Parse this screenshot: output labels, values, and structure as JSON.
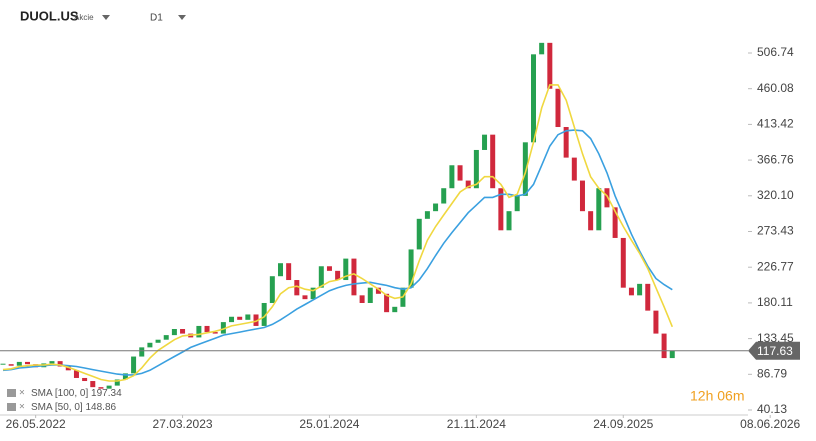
{
  "chart_data": {
    "type": "candle",
    "symbol": "DUOL.US",
    "asset_class": "Akcie",
    "timeframe": "D1",
    "countdown": "12h 06m",
    "xlim": [
      0,
      99
    ],
    "xticks": [
      {
        "value": 4,
        "label": "26.05.2022"
      },
      {
        "value": 22,
        "label": "27.03.2023"
      },
      {
        "value": 40,
        "label": "25.01.2024"
      },
      {
        "value": 58,
        "label": "21.11.2024"
      },
      {
        "value": 76,
        "label": "24.09.2025"
      },
      {
        "value": 94,
        "label": "08.06.2026"
      }
    ],
    "ylim": [
      33.6,
      576.0
    ],
    "yticks": [
      40.13,
      86.79,
      133.45,
      180.11,
      226.77,
      273.43,
      {
        "value": 320.1,
        "label": "320.10"
      },
      366.76,
      413.42,
      460.08,
      506.74
    ],
    "grid": false,
    "series": [
      {
        "name": "DUOL.US",
        "up_color": "#26a050",
        "down_color": "#d0283c",
        "values": [
          100,
          98,
          103,
          100,
          96,
          101,
          104,
          97,
          92,
          82,
          78,
          70,
          68,
          72,
          80,
          88,
          110,
          122,
          128,
          132,
          138,
          146,
          140,
          135,
          150,
          142,
          140,
          155,
          162,
          158,
          165,
          150,
          180,
          215,
          232,
          210,
          190,
          185,
          200,
          228,
          222,
          210,
          238,
          190,
          180,
          200,
          192,
          168,
          175,
          200,
          250,
          290,
          300,
          310,
          330,
          360,
          340,
          330,
          380,
          400,
          330,
          275,
          300,
          320,
          390,
          505,
          520,
          460,
          410,
          370,
          340,
          300,
          275,
          330,
          305,
          265,
          200,
          190,
          205,
          170,
          140,
          108,
          117.63
        ]
      },
      {
        "name": "SMA [100, 0]",
        "color": "#3aa0e0",
        "values": [
          92,
          93,
          95,
          96,
          97,
          98,
          99,
          99,
          98,
          97,
          95,
          93,
          91,
          89,
          87,
          86,
          86,
          88,
          92,
          98,
          104,
          110,
          116,
          122,
          126,
          130,
          134,
          138,
          140,
          142,
          144,
          146,
          148,
          152,
          158,
          165,
          172,
          178,
          184,
          190,
          196,
          200,
          203,
          205,
          206,
          207,
          205,
          203,
          200,
          198,
          200,
          210,
          225,
          242,
          258,
          272,
          285,
          298,
          308,
          318,
          318,
          322,
          322,
          320,
          322,
          335,
          360,
          385,
          400,
          405,
          406,
          405,
          395,
          375,
          350,
          320,
          295,
          270,
          248,
          228,
          212,
          204,
          197.34
        ],
        "value_label": "197.34"
      },
      {
        "name": "SMA [50, 0]",
        "color": "#f0d840",
        "values": [
          93,
          94,
          97,
          98,
          99,
          99,
          100,
          99,
          96,
          92,
          88,
          84,
          80,
          78,
          78,
          80,
          85,
          95,
          108,
          118,
          125,
          132,
          137,
          138,
          139,
          141,
          143,
          146,
          150,
          152,
          154,
          156,
          162,
          175,
          192,
          200,
          202,
          198,
          196,
          202,
          208,
          210,
          215,
          218,
          212,
          205,
          198,
          190,
          186,
          188,
          205,
          235,
          262,
          280,
          295,
          310,
          325,
          332,
          335,
          345,
          345,
          335,
          318,
          322,
          350,
          390,
          435,
          465,
          465,
          445,
          410,
          375,
          345,
          330,
          320,
          300,
          280,
          262,
          245,
          225,
          200,
          175,
          148.86
        ],
        "value_label": "148.86"
      }
    ]
  }
}
